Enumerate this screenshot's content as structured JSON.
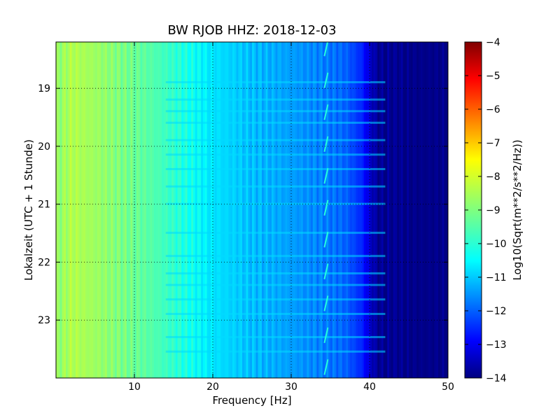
{
  "chart_data": {
    "type": "heatmap",
    "title": "BW RJOB HHZ: 2018-12-03",
    "xlabel": "Frequency [Hz]",
    "ylabel": "Lokalzeit (UTC + 1 Stunde)",
    "xlim": [
      0,
      50
    ],
    "ylim": [
      24.0,
      18.2
    ],
    "x_ticks": [
      10,
      20,
      30,
      40,
      50
    ],
    "y_ticks": [
      19,
      20,
      21,
      22,
      23
    ],
    "grid": true,
    "colormap": "jet",
    "colorbar": {
      "label": "Log10(Sqrt(m**2/s**2/Hz))",
      "range": [
        -14,
        -4
      ],
      "ticks": [
        -4,
        -5,
        -6,
        -7,
        -8,
        -9,
        -10,
        -11,
        -12,
        -13,
        -14
      ]
    },
    "profile_frequency_hz": [
      0,
      2,
      5,
      8,
      12,
      16,
      20,
      25,
      30,
      34,
      37,
      39,
      40,
      41,
      45,
      50
    ],
    "profile_level": [
      -8.9,
      -8.5,
      -8.7,
      -9.0,
      -9.4,
      -9.9,
      -10.5,
      -10.9,
      -11.2,
      -11.5,
      -11.8,
      -12.4,
      -13.2,
      -13.8,
      -13.9,
      -13.9
    ],
    "narrowband_features_hz": [
      34.5
    ],
    "broadband_events_time": [
      18.9,
      19.2,
      19.4,
      19.6,
      19.9,
      20.15,
      20.4,
      20.7,
      21.0,
      21.5,
      21.9,
      22.2,
      22.4,
      22.65,
      22.9,
      23.3,
      23.55
    ]
  }
}
